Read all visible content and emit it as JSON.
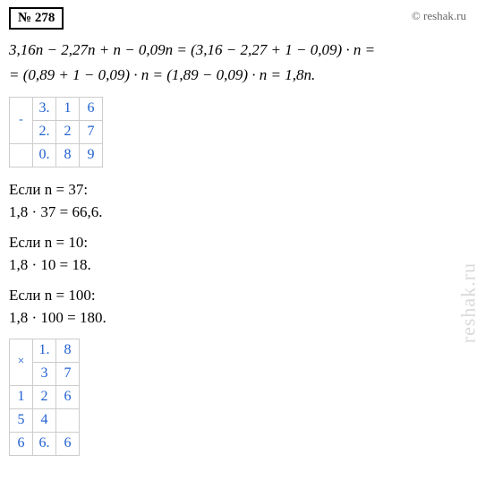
{
  "problem": {
    "number": "№ 278"
  },
  "watermark": {
    "top": "© reshak.ru",
    "side": "reshak.ru"
  },
  "simplification": {
    "line1": "3,16n − 2,27n + n − 0,09n = (3,16 − 2,27 + 1 − 0,09) · n =",
    "line2": "= (0,89 + 1 − 0,09) · n = (1,89 − 0,09) · n = 1,8n."
  },
  "subtraction_table": {
    "type": "arithmetic-column",
    "rows": [
      [
        "-",
        "3.",
        "1",
        "6"
      ],
      [
        "",
        "2.",
        "2",
        "7"
      ],
      [
        "",
        "0.",
        "8",
        "9"
      ]
    ],
    "border_color": "#cccccc",
    "text_color": "#2060d0"
  },
  "cases": {
    "c1": {
      "cond": "Если n = 37:",
      "result": "1,8 · 37 = 66,6."
    },
    "c2": {
      "cond": "Если n = 10:",
      "result": "1,8 · 10 = 18."
    },
    "c3": {
      "cond": "Если n = 100:",
      "result": "1,8 · 100 = 180."
    }
  },
  "multiplication_table": {
    "type": "arithmetic-column",
    "rows": [
      [
        "×",
        "1.",
        "8",
        ""
      ],
      [
        "",
        "3",
        "7",
        ""
      ],
      [
        "1",
        "2",
        "6",
        ""
      ],
      [
        "5",
        "4",
        "",
        ""
      ],
      [
        "6",
        "6.",
        "6",
        ""
      ]
    ],
    "border_color": "#cccccc",
    "text_color": "#2060d0"
  }
}
